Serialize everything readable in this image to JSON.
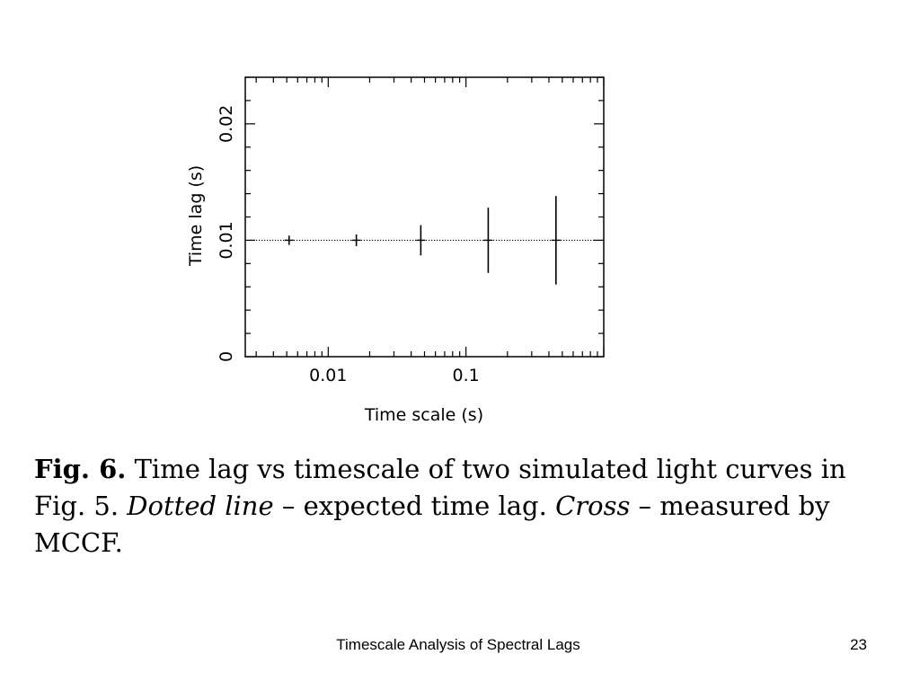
{
  "chart_data": {
    "type": "scatter",
    "xlabel": "Time scale (s)",
    "ylabel": "Time lag (s)",
    "xscale": "log",
    "xlim": [
      0.0025,
      1.0
    ],
    "ylim": [
      0,
      0.024
    ],
    "x_tick_labels": [
      {
        "value": 0.01,
        "label": "0.01"
      },
      {
        "value": 0.1,
        "label": "0.1"
      }
    ],
    "y_tick_labels": [
      {
        "value": 0,
        "label": "0"
      },
      {
        "value": 0.01,
        "label": "0.01"
      },
      {
        "value": 0.02,
        "label": "0.02"
      }
    ],
    "expected_lag": 0.01,
    "grid": false,
    "points": [
      {
        "x": 0.0052,
        "y": 0.01,
        "yerr": 0.0004
      },
      {
        "x": 0.016,
        "y": 0.01,
        "yerr": 0.0005
      },
      {
        "x": 0.047,
        "y": 0.01,
        "yerr": 0.0013
      },
      {
        "x": 0.145,
        "y": 0.01,
        "yerr": 0.0028
      },
      {
        "x": 0.45,
        "y": 0.01,
        "yerr": 0.0038
      }
    ]
  },
  "caption": {
    "fig_label": "Fig. 6.",
    "part1": " Time lag vs timescale of two simulated light curves in Fig. 5. ",
    "italic1": "Dotted line",
    "part2": " – expected time lag. ",
    "italic2": "Cross",
    "part3": " – measured by MCCF."
  },
  "footer": {
    "title": "Timescale Analysis of Spectral Lags",
    "page_number": "23"
  }
}
